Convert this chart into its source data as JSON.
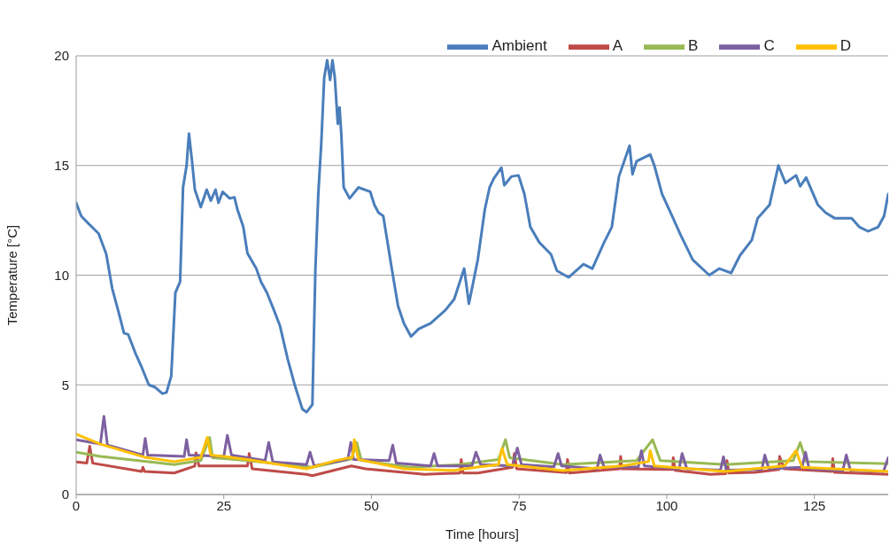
{
  "chart_data": {
    "type": "line",
    "xlabel": "Time [hours]",
    "ylabel": "Temperature [°C]",
    "xlim": [
      0,
      137.5
    ],
    "xticks": [
      0,
      25,
      50,
      75,
      100,
      125
    ],
    "ylim": [
      0,
      20
    ],
    "yticks": [
      0,
      5,
      10,
      15,
      20
    ],
    "grid": "y",
    "legend": "top right",
    "series": [
      {
        "name": "Ambient",
        "color": "#4a7ebb",
        "x": [
          0,
          0.85,
          2.1,
          3.8,
          5.1,
          6.1,
          7.1,
          8.1,
          8.8,
          10.1,
          11.1,
          12.3,
          13.3,
          14.6,
          15.3,
          16.1,
          16.8,
          17.6,
          18.1,
          18.7,
          19.1,
          19.6,
          20.1,
          21.1,
          22.1,
          22.8,
          23.6,
          24.1,
          24.8,
          26,
          26.8,
          27.3,
          28.3,
          29,
          30.5,
          31.3,
          32.3,
          33.5,
          34.5,
          35.8,
          37,
          38.3,
          39,
          40,
          40.5,
          41,
          41.5,
          42,
          42.5,
          43,
          43.4,
          43.8,
          44.3,
          44.6,
          44.9,
          45.3,
          46.3,
          47.8,
          49.8,
          50.5,
          51.2,
          52,
          53.5,
          54.5,
          55.5,
          56.7,
          58,
          60,
          62.5,
          64,
          65.7,
          66.5,
          68,
          69.2,
          70,
          70.7,
          72,
          72.5,
          73.7,
          74.9,
          75.9,
          76.9,
          78.4,
          80.4,
          81.4,
          83.4,
          85.9,
          87.4,
          89.4,
          90.7,
          91.9,
          93.7,
          94.2,
          94.9,
          97.2,
          97.9,
          99.2,
          100.9,
          102.4,
          104.4,
          107.2,
          108.9,
          110.9,
          112.4,
          114.4,
          115.4,
          117.4,
          118.9,
          120.1,
          121.9,
          122.6,
          123.6,
          125.6,
          126.9,
          128.4,
          131.3,
          132.6,
          134.1,
          135.8,
          136.8,
          137.5
        ],
        "values": [
          13.3,
          12.7,
          12.35,
          11.9,
          10.96,
          9.4,
          8.4,
          7.36,
          7.3,
          6.4,
          5.8,
          5,
          4.9,
          4.6,
          4.65,
          5.4,
          9.2,
          9.7,
          14,
          15,
          16.45,
          15.25,
          13.9,
          13.1,
          13.9,
          13.4,
          13.9,
          13.3,
          13.8,
          13.5,
          13.55,
          13,
          12.2,
          11,
          10.3,
          9.7,
          9.2,
          8.4,
          7.7,
          6.2,
          5,
          3.9,
          3.75,
          4.1,
          10.2,
          13.7,
          16,
          19,
          19.8,
          18.9,
          19.8,
          19,
          16.9,
          17.65,
          16.4,
          14,
          13.5,
          14,
          13.8,
          13.2,
          12.85,
          12.7,
          10.2,
          8.6,
          7.8,
          7.2,
          7.55,
          7.8,
          8.4,
          8.9,
          10.3,
          8.7,
          10.7,
          13,
          14,
          14.4,
          14.9,
          14.1,
          14.5,
          14.55,
          13.7,
          12.2,
          11.5,
          10.95,
          10.2,
          9.9,
          10.5,
          10.3,
          11.5,
          12.2,
          14.5,
          15.9,
          14.6,
          15.2,
          15.5,
          15,
          13.7,
          12.7,
          11.8,
          10.7,
          10,
          10.3,
          10.1,
          10.9,
          11.6,
          12.6,
          13.2,
          15,
          14.2,
          14.55,
          14.05,
          14.45,
          13.2,
          12.85,
          12.6,
          12.6,
          12.2,
          12,
          12.2,
          12.7,
          13.7
        ]
      },
      {
        "name": "A",
        "color": "#be4b48",
        "x": [
          0,
          1.8,
          2.3,
          2.8,
          11.1,
          11.3,
          11.6,
          16.6,
          20.1,
          20.3,
          20.8,
          29,
          29.3,
          29.8,
          39,
          40,
          46.6,
          49,
          59,
          65,
          65.2,
          65.5,
          68,
          73.9,
          74.2,
          74.6,
          83,
          83.2,
          83.5,
          92,
          92.2,
          92.4,
          99.9,
          101,
          101.1,
          101.4,
          107.4,
          110,
          110.2,
          110.5,
          114.9,
          119,
          119.1,
          119.9,
          128,
          128.1,
          128.4,
          137.5
        ],
        "values": [
          1.49,
          1.43,
          2.2,
          1.43,
          1.05,
          1.24,
          1.05,
          0.98,
          1.3,
          1.9,
          1.3,
          1.3,
          1.87,
          1.17,
          0.92,
          0.86,
          1.3,
          1.17,
          0.92,
          0.98,
          1.6,
          0.98,
          0.98,
          1.24,
          1.87,
          1.17,
          1,
          1.6,
          0.98,
          1.17,
          1.74,
          1.17,
          1.14,
          1.14,
          1.68,
          1.1,
          0.92,
          0.95,
          1.55,
          0.98,
          1.01,
          1.14,
          1.74,
          1.17,
          1.05,
          1.64,
          1.01,
          0.92
        ]
      },
      {
        "name": "B",
        "color": "#98b954",
        "x": [
          0,
          4.1,
          16.6,
          21.1,
          22.6,
          23.1,
          29,
          40,
          46.6,
          47.5,
          48.3,
          56.5,
          65,
          71.5,
          72.7,
          73.4,
          82.4,
          94.9,
          97.6,
          98.9,
          109.9,
          121.4,
          122.6,
          123.6,
          137.5
        ],
        "values": [
          1.93,
          1.74,
          1.36,
          1.55,
          2.6,
          1.68,
          1.55,
          1.24,
          1.62,
          2.37,
          1.55,
          1.24,
          1.36,
          1.6,
          2.5,
          1.68,
          1.36,
          1.55,
          2.5,
          1.55,
          1.36,
          1.55,
          2.37,
          1.5,
          1.4
        ]
      },
      {
        "name": "C",
        "color": "#7d60a0",
        "x": [
          0,
          4.1,
          4.7,
          5.3,
          11.3,
          11.7,
          12.1,
          18.3,
          18.7,
          19.1,
          25,
          25.6,
          26.3,
          32,
          32.6,
          33.3,
          39,
          39.6,
          40.3,
          46,
          46.5,
          47,
          53,
          53.6,
          54.2,
          60,
          60.6,
          61.2,
          67,
          67.7,
          68.5,
          73.9,
          74.7,
          75.4,
          80.9,
          81.6,
          82.2,
          88.2,
          88.7,
          89.4,
          95.2,
          95.7,
          96.2,
          102.1,
          102.6,
          103.4,
          109.1,
          109.6,
          110.1,
          116.1,
          116.6,
          117.3,
          122.9,
          123.5,
          124.1,
          129.8,
          130.4,
          131.1,
          136.7,
          137.5
        ],
        "values": [
          2.5,
          2.3,
          3.57,
          2.25,
          1.8,
          2.56,
          1.8,
          1.74,
          2.5,
          1.8,
          1.74,
          2.7,
          1.8,
          1.55,
          2.37,
          1.49,
          1.36,
          1.93,
          1.3,
          1.6,
          2.37,
          1.6,
          1.55,
          2.25,
          1.43,
          1.3,
          1.87,
          1.3,
          1.3,
          1.93,
          1.36,
          1.3,
          2.12,
          1.36,
          1.26,
          1.87,
          1.3,
          1.17,
          1.8,
          1.24,
          1.26,
          2,
          1.3,
          1.17,
          1.87,
          1.17,
          1.11,
          1.72,
          1.11,
          1.14,
          1.8,
          1.17,
          1.24,
          1.93,
          1.17,
          1.09,
          1.8,
          1.11,
          1.05,
          1.68
        ]
      },
      {
        "name": "D",
        "color": "#ffc000",
        "x": [
          0,
          4.1,
          11.6,
          16.6,
          21.1,
          22.2,
          22.8,
          29,
          39,
          44,
          46.8,
          47.1,
          47.8,
          55.5,
          64,
          68,
          71.5,
          72.1,
          73,
          82.4,
          92.4,
          96.9,
          97.2,
          97.9,
          109.9,
          119.9,
          121.9,
          122.9,
          137.5
        ],
        "values": [
          2.75,
          2.3,
          1.7,
          1.5,
          1.7,
          2.6,
          1.8,
          1.6,
          1.17,
          1.55,
          1.7,
          2.5,
          1.6,
          1.17,
          1.1,
          1.25,
          1.36,
          2.1,
          1.36,
          1.09,
          1.3,
          1.5,
          2,
          1.3,
          1.05,
          1.3,
          2,
          1.24,
          1.05
        ]
      }
    ]
  }
}
